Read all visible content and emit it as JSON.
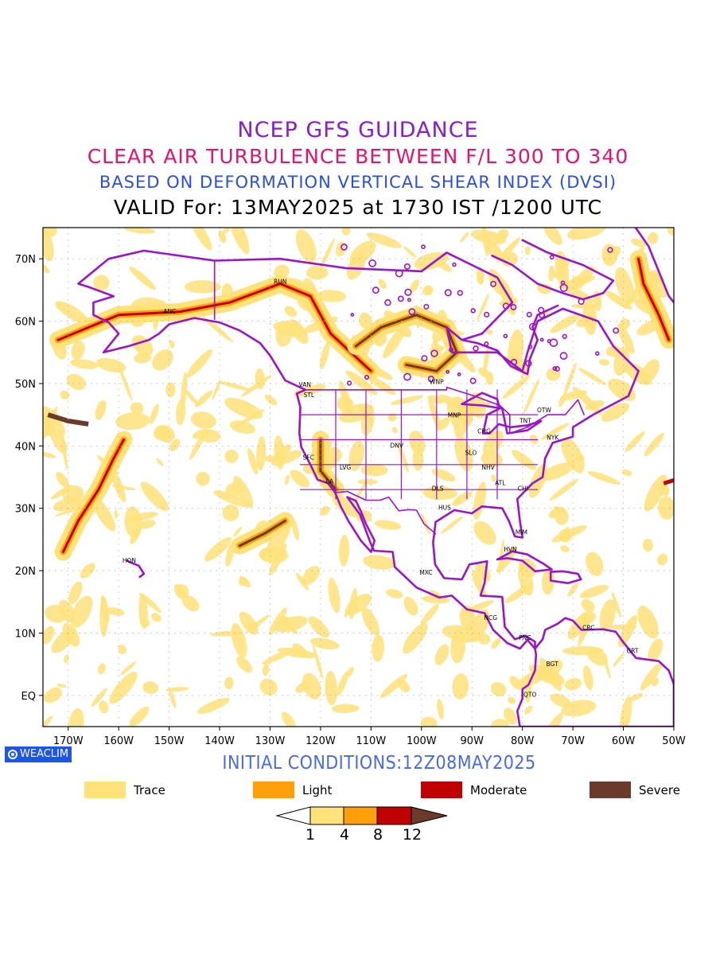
{
  "titles": {
    "line1": "NCEP GFS GUIDANCE",
    "line2": "CLEAR AIR TURBULENCE BETWEEN F/L 300 TO 340",
    "line3": "BASED ON DEFORMATION VERTICAL SHEAR INDEX (DVSI)",
    "line4": "VALID For: 13MAY2025 at 1730 IST /1200 UTC"
  },
  "colors": {
    "line1": "#8a1ec8",
    "line2": "#e0156e",
    "line3": "#2a4fe0",
    "line4": "#000000",
    "initial": "#4a6ae0",
    "trace": "#ffe27a",
    "light": "#ff9f0a",
    "moderate": "#c00000",
    "severe": "#6b3a2a",
    "coast": "#9a15c8"
  },
  "map": {
    "lat_labels": [
      "70N",
      "60N",
      "50N",
      "40N",
      "30N",
      "20N",
      "10N",
      "EQ"
    ],
    "lon_labels": [
      "170W",
      "160W",
      "150W",
      "140W",
      "130W",
      "120W",
      "110W",
      "100W",
      "90W",
      "80W",
      "70W",
      "60W",
      "50W"
    ],
    "stations": [
      {
        "code": "ANC",
        "lon": -149.9,
        "lat": 61.2
      },
      {
        "code": "RUN",
        "lon": -128.0,
        "lat": 66.0
      },
      {
        "code": "VAN",
        "lon": -123.1,
        "lat": 49.5
      },
      {
        "code": "STL",
        "lon": -122.3,
        "lat": 47.8
      },
      {
        "code": "WNP",
        "lon": -97.0,
        "lat": 49.9
      },
      {
        "code": "MNP",
        "lon": -93.5,
        "lat": 44.6
      },
      {
        "code": "OTW",
        "lon": -75.7,
        "lat": 45.4
      },
      {
        "code": "TNT",
        "lon": -79.4,
        "lat": 43.7
      },
      {
        "code": "CHG",
        "lon": -87.6,
        "lat": 42.0
      },
      {
        "code": "NYK",
        "lon": -74.0,
        "lat": 41.0
      },
      {
        "code": "SFC",
        "lon": -122.4,
        "lat": 37.8
      },
      {
        "code": "LVG",
        "lon": -115.1,
        "lat": 36.2
      },
      {
        "code": "DNV",
        "lon": -104.9,
        "lat": 39.7
      },
      {
        "code": "SLO",
        "lon": -90.2,
        "lat": 38.6
      },
      {
        "code": "NHV",
        "lon": -86.8,
        "lat": 36.2
      },
      {
        "code": "LA",
        "lon": -118.2,
        "lat": 34.0
      },
      {
        "code": "DLS",
        "lon": -96.8,
        "lat": 32.8
      },
      {
        "code": "ATL",
        "lon": -84.4,
        "lat": 33.7
      },
      {
        "code": "CHI",
        "lon": -79.9,
        "lat": 32.8
      },
      {
        "code": "HUS",
        "lon": -95.4,
        "lat": 29.8
      },
      {
        "code": "MIM",
        "lon": -80.2,
        "lat": 25.8
      },
      {
        "code": "HVN",
        "lon": -82.4,
        "lat": 23.1
      },
      {
        "code": "HON",
        "lon": -157.9,
        "lat": 21.3
      },
      {
        "code": "MXC",
        "lon": -99.1,
        "lat": 19.4
      },
      {
        "code": "NCG",
        "lon": -86.3,
        "lat": 12.1
      },
      {
        "code": "CRC",
        "lon": -66.9,
        "lat": 10.5
      },
      {
        "code": "PNC",
        "lon": -79.5,
        "lat": 8.9
      },
      {
        "code": "GRT",
        "lon": -58.2,
        "lat": 6.8
      },
      {
        "code": "BGT",
        "lon": -74.1,
        "lat": 4.7
      },
      {
        "code": "QTO",
        "lon": -78.5,
        "lat": -0.2
      }
    ]
  },
  "brand": "WEACLIM",
  "initial_conditions": "INITIAL CONDITIONS:12Z08MAY2025",
  "legend": [
    {
      "label": "Trace",
      "color": "#ffe27a"
    },
    {
      "label": "Light",
      "color": "#ff9f0a"
    },
    {
      "label": "Moderate",
      "color": "#c00000"
    },
    {
      "label": "Severe",
      "color": "#6b3a2a"
    }
  ],
  "colorbar": {
    "ticks": [
      "1",
      "4",
      "8",
      "12"
    ],
    "colors": [
      "#ffe27a",
      "#ff9f0a",
      "#c00000"
    ],
    "low_color": "#ffffff",
    "high_color": "#6b3a2a"
  }
}
